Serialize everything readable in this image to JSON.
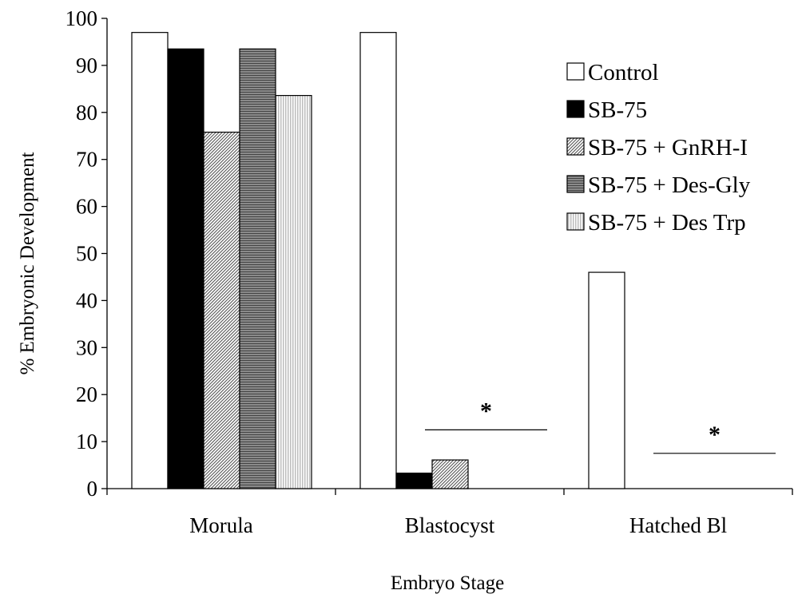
{
  "chart_data": {
    "type": "bar",
    "title": "",
    "xlabel": "Embryo Stage",
    "ylabel": "% Embryonic Development",
    "ylim": [
      0,
      100
    ],
    "yticks": [
      0,
      10,
      20,
      30,
      40,
      50,
      60,
      70,
      80,
      90,
      100
    ],
    "categories": [
      "Morula",
      "Blastocyst",
      "Hatched Bl"
    ],
    "series": [
      {
        "name": "Control",
        "values": [
          97,
          97,
          46
        ],
        "fill": "white"
      },
      {
        "name": "SB-75",
        "values": [
          93.5,
          3.3,
          0
        ],
        "fill": "black"
      },
      {
        "name": "SB-75 + GnRH-I",
        "values": [
          75.8,
          6.1,
          0
        ],
        "fill": "diag-hatch"
      },
      {
        "name": "SB-75 + Des-Gly",
        "values": [
          93.5,
          0,
          0
        ],
        "fill": "dense-hatch"
      },
      {
        "name": "SB-75 + Des Trp",
        "values": [
          83.6,
          0,
          0
        ],
        "fill": "light-dots"
      }
    ],
    "annotations": [
      {
        "text": "*",
        "category": "Blastocyst",
        "y": 12.5
      },
      {
        "text": "*",
        "category": "Hatched Bl",
        "y": 7.5
      }
    ],
    "legend_position": "top-right",
    "grid": false
  }
}
